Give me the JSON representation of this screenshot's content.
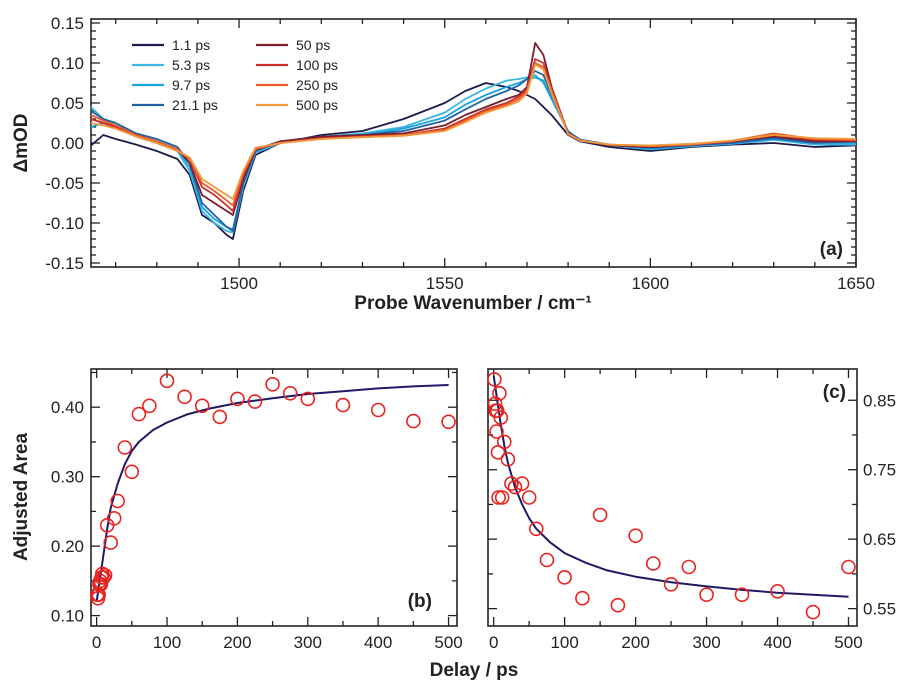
{
  "chart_data": [
    {
      "panel_label": "(a)",
      "type": "line",
      "xlabel": "Probe Wavenumber / cm⁻¹",
      "ylabel": "ΔmOD",
      "xlim": [
        1464,
        1650
      ],
      "ylim": [
        -0.155,
        0.155
      ],
      "xticks": [
        1500,
        1550,
        1600,
        1650
      ],
      "yticks": [
        -0.15,
        -0.1,
        -0.05,
        0.0,
        0.05,
        0.1,
        0.15
      ],
      "ytick_labels": [
        "-0.15",
        "-0.10",
        "-0.05",
        "0.00",
        "0.05",
        "0.10",
        "0.15"
      ],
      "legend_position": "top-left",
      "x": [
        1464,
        1467,
        1470,
        1475,
        1480,
        1485,
        1488,
        1491,
        1494,
        1497,
        1498.5,
        1501,
        1504,
        1510,
        1520,
        1530,
        1540,
        1550,
        1555,
        1560,
        1565,
        1568,
        1570,
        1572,
        1574,
        1576,
        1580,
        1583,
        1590,
        1600,
        1610,
        1620,
        1630,
        1640,
        1650
      ],
      "series": [
        {
          "name": "1.1 ps",
          "color": "#1c1a4d",
          "values": [
            -0.003,
            0.01,
            0.005,
            -0.002,
            -0.01,
            -0.02,
            -0.04,
            -0.09,
            -0.1,
            -0.115,
            -0.12,
            -0.06,
            -0.015,
            0.0,
            0.01,
            0.015,
            0.03,
            0.05,
            0.065,
            0.075,
            0.07,
            0.065,
            0.06,
            0.055,
            0.045,
            0.035,
            0.01,
            0.002,
            -0.005,
            -0.01,
            -0.005,
            -0.002,
            0.0,
            -0.005,
            -0.003
          ]
        },
        {
          "name": "5.3 ps",
          "color": "#3cb6e0",
          "values": [
            0.045,
            0.03,
            0.025,
            0.01,
            0.0,
            -0.01,
            -0.035,
            -0.085,
            -0.1,
            -0.11,
            -0.112,
            -0.055,
            -0.012,
            0.0,
            0.008,
            0.012,
            0.02,
            0.038,
            0.055,
            0.068,
            0.078,
            0.08,
            0.082,
            0.085,
            0.075,
            0.055,
            0.015,
            0.003,
            -0.003,
            -0.008,
            -0.004,
            -0.001,
            0.004,
            -0.002,
            -0.002
          ]
        },
        {
          "name": "9.7 ps",
          "color": "#17a4e0",
          "values": [
            0.02,
            0.025,
            0.02,
            0.01,
            0.002,
            -0.008,
            -0.03,
            -0.08,
            -0.095,
            -0.105,
            -0.108,
            -0.05,
            -0.01,
            0.002,
            0.008,
            0.01,
            0.018,
            0.032,
            0.048,
            0.06,
            0.07,
            0.075,
            0.08,
            0.082,
            0.078,
            0.055,
            0.014,
            0.004,
            -0.002,
            -0.007,
            -0.003,
            0.0,
            0.005,
            0.0,
            0.0
          ]
        },
        {
          "name": "21.1 ps",
          "color": "#2263a6",
          "values": [
            0.04,
            0.03,
            0.025,
            0.012,
            0.005,
            -0.005,
            -0.025,
            -0.075,
            -0.09,
            -0.105,
            -0.11,
            -0.05,
            -0.01,
            0.002,
            0.008,
            0.01,
            0.015,
            0.028,
            0.042,
            0.055,
            0.065,
            0.072,
            0.08,
            0.09,
            0.085,
            0.06,
            0.014,
            0.004,
            -0.002,
            -0.006,
            -0.003,
            0.0,
            0.006,
            0.0,
            0.002
          ]
        },
        {
          "name": "50 ps",
          "color": "#7c1d2b",
          "values": [
            0.03,
            0.025,
            0.02,
            0.01,
            0.002,
            -0.008,
            -0.025,
            -0.065,
            -0.075,
            -0.085,
            -0.09,
            -0.045,
            -0.008,
            0.002,
            0.008,
            0.01,
            0.012,
            0.022,
            0.035,
            0.045,
            0.055,
            0.06,
            0.07,
            0.125,
            0.11,
            0.07,
            0.012,
            0.003,
            -0.003,
            -0.005,
            -0.002,
            0.002,
            0.008,
            0.002,
            0.002
          ]
        },
        {
          "name": "100 ps",
          "color": "#c9302c",
          "values": [
            0.03,
            0.025,
            0.02,
            0.008,
            0.0,
            -0.01,
            -0.02,
            -0.055,
            -0.065,
            -0.078,
            -0.085,
            -0.04,
            -0.008,
            0.0,
            0.006,
            0.008,
            0.01,
            0.018,
            0.03,
            0.042,
            0.05,
            0.058,
            0.068,
            0.105,
            0.1,
            0.068,
            0.012,
            0.003,
            -0.002,
            -0.004,
            -0.002,
            0.002,
            0.01,
            0.004,
            0.003
          ]
        },
        {
          "name": "250 ps",
          "color": "#ea5a2a",
          "values": [
            0.035,
            0.028,
            0.022,
            0.01,
            0.002,
            -0.008,
            -0.02,
            -0.05,
            -0.06,
            -0.072,
            -0.078,
            -0.038,
            -0.007,
            0.0,
            0.005,
            0.008,
            0.01,
            0.016,
            0.028,
            0.04,
            0.048,
            0.055,
            0.065,
            0.1,
            0.095,
            0.065,
            0.012,
            0.003,
            -0.002,
            -0.004,
            -0.002,
            0.003,
            0.012,
            0.005,
            0.004
          ]
        },
        {
          "name": "500 ps",
          "color": "#f09a3e",
          "values": [
            0.025,
            0.022,
            0.018,
            0.008,
            0.0,
            -0.01,
            -0.018,
            -0.045,
            -0.055,
            -0.065,
            -0.07,
            -0.035,
            -0.006,
            0.0,
            0.005,
            0.007,
            0.009,
            0.015,
            0.026,
            0.038,
            0.046,
            0.052,
            0.062,
            0.098,
            0.092,
            0.062,
            0.011,
            0.003,
            -0.002,
            -0.003,
            -0.001,
            0.003,
            0.01,
            0.006,
            0.005
          ]
        }
      ]
    },
    {
      "panel_label": "(b)",
      "type": "scatter",
      "xlabel": "Delay / ps",
      "ylabel": "Adjusted Area",
      "xlim": [
        -8,
        512
      ],
      "ylim": [
        0.085,
        0.455
      ],
      "xticks": [
        0,
        100,
        200,
        300,
        400,
        500
      ],
      "yticks": [
        0.1,
        0.2,
        0.3,
        0.4
      ],
      "ytick_labels": [
        "0.10",
        "0.20",
        "0.30",
        "0.40"
      ],
      "marker_color": "#e8231f",
      "fit_color": "#1f1a66",
      "points": {
        "x": [
          1,
          2,
          3,
          4,
          5,
          6,
          7,
          8,
          10,
          12,
          15,
          20,
          25,
          30,
          40,
          50,
          60,
          75,
          100,
          125,
          150,
          175,
          200,
          225,
          250,
          275,
          300,
          350,
          400,
          450,
          500
        ],
        "y": [
          0.13,
          0.125,
          0.13,
          0.145,
          0.15,
          0.145,
          0.155,
          0.16,
          0.155,
          0.158,
          0.23,
          0.205,
          0.24,
          0.265,
          0.342,
          0.307,
          0.39,
          0.402,
          0.438,
          0.415,
          0.402,
          0.386,
          0.412,
          0.408,
          0.433,
          0.42,
          0.412,
          0.403,
          0.396,
          0.38,
          0.379
        ]
      },
      "fit": {
        "x": [
          0,
          5,
          10,
          15,
          20,
          30,
          40,
          50,
          60,
          80,
          100,
          130,
          160,
          200,
          250,
          300,
          350,
          400,
          450,
          500
        ],
        "y": [
          0.12,
          0.155,
          0.19,
          0.225,
          0.255,
          0.29,
          0.318,
          0.337,
          0.35,
          0.367,
          0.378,
          0.39,
          0.398,
          0.406,
          0.413,
          0.419,
          0.423,
          0.427,
          0.43,
          0.432
        ]
      }
    },
    {
      "panel_label": "(c)",
      "type": "scatter",
      "xlabel": "Delay / ps",
      "ylabel": "",
      "xlim": [
        -8,
        512
      ],
      "ylim": [
        0.525,
        0.895
      ],
      "xticks": [
        0,
        100,
        200,
        300,
        400,
        500
      ],
      "yticks": [
        0.55,
        0.65,
        0.75,
        0.85
      ],
      "ytick_labels": [
        "0.55",
        "0.65",
        "0.75",
        "0.85"
      ],
      "y_axis_side": "right",
      "marker_color": "#e8231f",
      "fit_color": "#1f1a66",
      "points": {
        "x": [
          1,
          2,
          3,
          4,
          5,
          6,
          7,
          8,
          10,
          12,
          15,
          20,
          25,
          30,
          40,
          50,
          60,
          75,
          100,
          125,
          150,
          175,
          200,
          225,
          250,
          275,
          300,
          350,
          400,
          450,
          500
        ],
        "y": [
          0.88,
          0.845,
          0.835,
          0.805,
          0.835,
          0.775,
          0.71,
          0.86,
          0.825,
          0.71,
          0.79,
          0.765,
          0.73,
          0.725,
          0.73,
          0.71,
          0.665,
          0.62,
          0.595,
          0.565,
          0.685,
          0.555,
          0.655,
          0.615,
          0.585,
          0.61,
          0.57,
          0.57,
          0.575,
          0.545,
          0.61
        ]
      },
      "fit": {
        "x": [
          0,
          5,
          10,
          15,
          20,
          30,
          40,
          50,
          60,
          80,
          100,
          130,
          160,
          200,
          250,
          300,
          350,
          400,
          450,
          500
        ],
        "y": [
          0.885,
          0.85,
          0.815,
          0.785,
          0.76,
          0.725,
          0.7,
          0.68,
          0.665,
          0.645,
          0.63,
          0.616,
          0.605,
          0.596,
          0.588,
          0.582,
          0.577,
          0.573,
          0.57,
          0.567
        ]
      }
    }
  ]
}
